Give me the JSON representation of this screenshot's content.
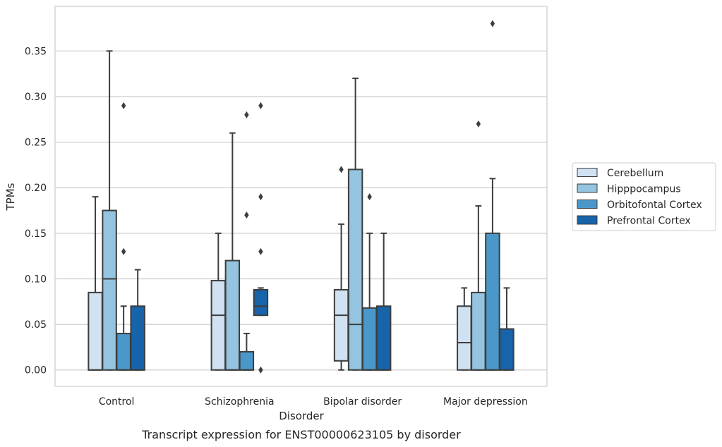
{
  "chart_data": {
    "type": "box",
    "title": "",
    "caption": "Transcript expression for ENST00000623105 by disorder",
    "xlabel": "Disorder",
    "ylabel": "TPMs",
    "ylim": [
      -0.018,
      0.399
    ],
    "yticks": [
      0.0,
      0.05,
      0.1,
      0.15,
      0.2,
      0.25,
      0.3,
      0.35
    ],
    "ytick_labels": [
      "0.00",
      "0.05",
      "0.10",
      "0.15",
      "0.20",
      "0.25",
      "0.30",
      "0.35"
    ],
    "grid": "horizontal",
    "legend_position": "right",
    "categories": [
      "Control",
      "Schizophrenia",
      "Bipolar disorder",
      "Major depression"
    ],
    "series": [
      {
        "name": "Cerebellum",
        "color": "#d0e1f2",
        "boxes": [
          {
            "q1": 0.0,
            "median": 0.0,
            "q3": 0.085,
            "whisker_low": 0.0,
            "whisker_high": 0.19,
            "outliers": []
          },
          {
            "q1": 0.0,
            "median": 0.06,
            "q3": 0.098,
            "whisker_low": 0.0,
            "whisker_high": 0.15,
            "outliers": []
          },
          {
            "q1": 0.01,
            "median": 0.06,
            "q3": 0.088,
            "whisker_low": 0.0,
            "whisker_high": 0.16,
            "outliers": [
              0.22
            ]
          },
          {
            "q1": 0.0,
            "median": 0.03,
            "q3": 0.07,
            "whisker_low": 0.0,
            "whisker_high": 0.09,
            "outliers": []
          }
        ]
      },
      {
        "name": "Hipppocampus",
        "color": "#94c4df",
        "boxes": [
          {
            "q1": 0.0,
            "median": 0.1,
            "q3": 0.175,
            "whisker_low": 0.0,
            "whisker_high": 0.35,
            "outliers": []
          },
          {
            "q1": 0.0,
            "median": 0.0,
            "q3": 0.12,
            "whisker_low": 0.0,
            "whisker_high": 0.26,
            "outliers": []
          },
          {
            "q1": 0.0,
            "median": 0.05,
            "q3": 0.22,
            "whisker_low": 0.0,
            "whisker_high": 0.32,
            "outliers": []
          },
          {
            "q1": 0.0,
            "median": 0.0,
            "q3": 0.085,
            "whisker_low": 0.0,
            "whisker_high": 0.18,
            "outliers": [
              0.27
            ]
          }
        ]
      },
      {
        "name": "Orbitofontal Cortex",
        "color": "#4a98c9",
        "boxes": [
          {
            "q1": 0.0,
            "median": 0.0,
            "q3": 0.04,
            "whisker_low": 0.0,
            "whisker_high": 0.07,
            "outliers": [
              0.13,
              0.29
            ]
          },
          {
            "q1": 0.0,
            "median": 0.0,
            "q3": 0.02,
            "whisker_low": 0.0,
            "whisker_high": 0.04,
            "outliers": [
              0.17,
              0.28
            ]
          },
          {
            "q1": 0.0,
            "median": 0.0,
            "q3": 0.068,
            "whisker_low": 0.0,
            "whisker_high": 0.15,
            "outliers": [
              0.19
            ]
          },
          {
            "q1": 0.0,
            "median": 0.0,
            "q3": 0.15,
            "whisker_low": 0.0,
            "whisker_high": 0.21,
            "outliers": [
              0.38
            ]
          }
        ]
      },
      {
        "name": "Prefrontal Cortex",
        "color": "#1764ab",
        "boxes": [
          {
            "q1": 0.0,
            "median": 0.0,
            "q3": 0.07,
            "whisker_low": 0.0,
            "whisker_high": 0.11,
            "outliers": []
          },
          {
            "q1": 0.06,
            "median": 0.07,
            "q3": 0.088,
            "whisker_low": 0.06,
            "whisker_high": 0.09,
            "outliers": [
              0.0,
              0.13,
              0.19,
              0.29
            ]
          },
          {
            "q1": 0.0,
            "median": 0.0,
            "q3": 0.07,
            "whisker_low": 0.0,
            "whisker_high": 0.15,
            "outliers": []
          },
          {
            "q1": 0.0,
            "median": 0.0,
            "q3": 0.045,
            "whisker_low": 0.0,
            "whisker_high": 0.09,
            "outliers": []
          }
        ]
      }
    ]
  }
}
